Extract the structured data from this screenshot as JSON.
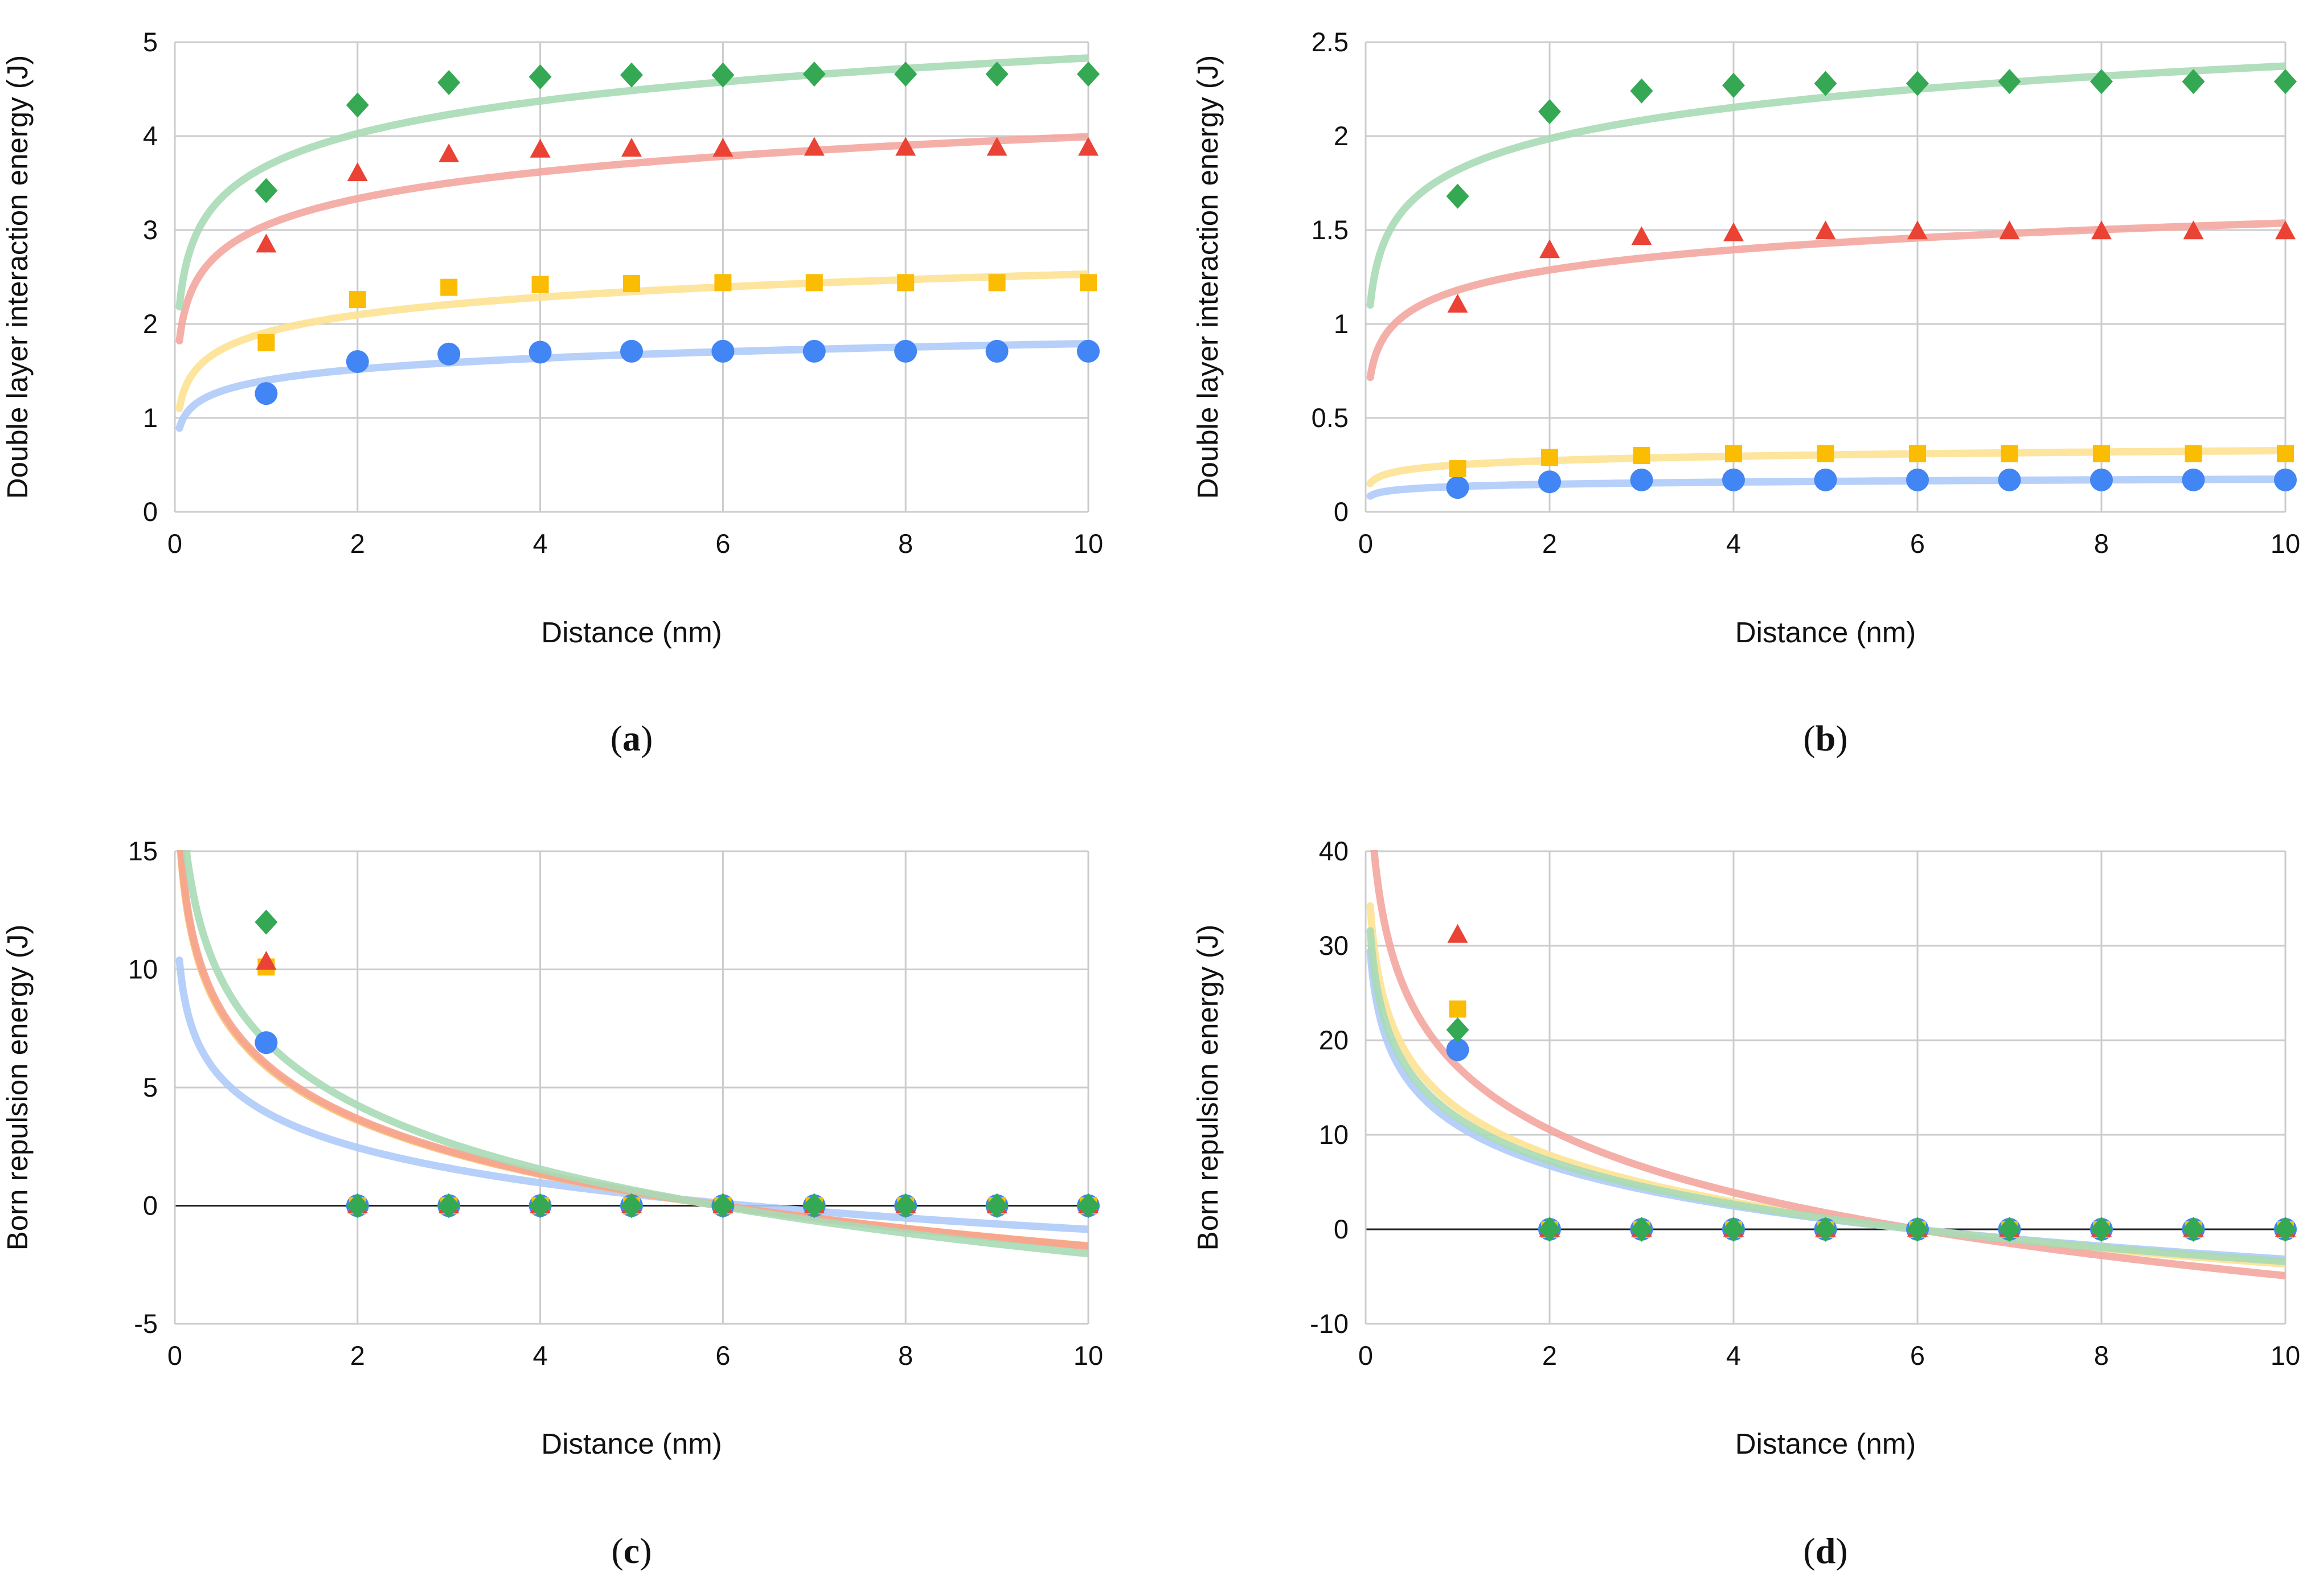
{
  "chart_data": [
    {
      "type": "scatter",
      "panel": "a",
      "caption_label": "a",
      "xlabel": "Distance (nm)",
      "ylabel": "Double layer interaction energy (J)",
      "xlim": [
        0,
        10
      ],
      "ylim": [
        0,
        5
      ],
      "xticks": [
        "0",
        "2",
        "4",
        "6",
        "8",
        "10"
      ],
      "yticks": [
        "0",
        "1",
        "2",
        "3",
        "4",
        "5"
      ],
      "grid": true,
      "legend": "none",
      "series": [
        {
          "name": "blue",
          "color": "#4285f4",
          "trend_color": "#aecbfa",
          "marker": "circle",
          "x": [
            1,
            2,
            3,
            4,
            5,
            6,
            7,
            8,
            9,
            10
          ],
          "y": [
            1.26,
            1.6,
            1.68,
            1.7,
            1.71,
            1.71,
            1.71,
            1.71,
            1.71,
            1.71
          ],
          "trend": {
            "a": 1.4,
            "b": 0.17
          }
        },
        {
          "name": "yellow",
          "color": "#fbbc04",
          "trend_color": "#fde293",
          "marker": "square",
          "x": [
            1,
            2,
            3,
            4,
            5,
            6,
            7,
            8,
            9,
            10
          ],
          "y": [
            1.8,
            2.26,
            2.39,
            2.42,
            2.43,
            2.44,
            2.44,
            2.44,
            2.44,
            2.44
          ],
          "trend": {
            "a": 1.91,
            "b": 0.27
          }
        },
        {
          "name": "red",
          "color": "#ea4335",
          "trend_color": "#f4a6a0",
          "marker": "triangle",
          "x": [
            1,
            2,
            3,
            4,
            5,
            6,
            7,
            8,
            9,
            10
          ],
          "y": [
            2.84,
            3.6,
            3.8,
            3.85,
            3.86,
            3.86,
            3.87,
            3.87,
            3.87,
            3.87
          ],
          "trend": {
            "a": 3.05,
            "b": 0.41
          }
        },
        {
          "name": "green",
          "color": "#34a853",
          "trend_color": "#a8dab5",
          "marker": "diamond",
          "x": [
            1,
            2,
            3,
            4,
            5,
            6,
            7,
            8,
            9,
            10
          ],
          "y": [
            3.42,
            4.33,
            4.57,
            4.63,
            4.65,
            4.65,
            4.66,
            4.66,
            4.66,
            4.66
          ],
          "trend": {
            "a": 3.68,
            "b": 0.5
          }
        }
      ]
    },
    {
      "type": "scatter",
      "panel": "b",
      "caption_label": "b",
      "xlabel": "Distance (nm)",
      "ylabel": "Double layer interaction energy (J)",
      "xlim": [
        0,
        10
      ],
      "ylim": [
        0,
        2.5
      ],
      "xticks": [
        "0",
        "2",
        "4",
        "6",
        "8",
        "10"
      ],
      "yticks": [
        "0",
        "0.5",
        "1",
        "1.5",
        "2",
        "2.5"
      ],
      "grid": true,
      "legend": "none",
      "series": [
        {
          "name": "blue",
          "color": "#4285f4",
          "trend_color": "#aecbfa",
          "marker": "circle",
          "x": [
            1,
            2,
            3,
            4,
            5,
            6,
            7,
            8,
            9,
            10
          ],
          "y": [
            0.13,
            0.16,
            0.17,
            0.17,
            0.17,
            0.17,
            0.17,
            0.17,
            0.17,
            0.17
          ],
          "trend": {
            "a": 0.135,
            "b": 0.017
          }
        },
        {
          "name": "yellow",
          "color": "#fbbc04",
          "trend_color": "#fde293",
          "marker": "square",
          "x": [
            1,
            2,
            3,
            4,
            5,
            6,
            7,
            8,
            9,
            10
          ],
          "y": [
            0.23,
            0.29,
            0.3,
            0.31,
            0.31,
            0.31,
            0.31,
            0.31,
            0.31,
            0.31
          ],
          "trend": {
            "a": 0.25,
            "b": 0.033
          }
        },
        {
          "name": "red",
          "color": "#ea4335",
          "trend_color": "#f4a6a0",
          "marker": "triangle",
          "x": [
            1,
            2,
            3,
            4,
            5,
            6,
            7,
            8,
            9,
            10
          ],
          "y": [
            1.1,
            1.39,
            1.46,
            1.48,
            1.49,
            1.49,
            1.49,
            1.49,
            1.49,
            1.49
          ],
          "trend": {
            "a": 1.18,
            "b": 0.155
          }
        },
        {
          "name": "green",
          "color": "#34a853",
          "trend_color": "#a8dab5",
          "marker": "diamond",
          "x": [
            1,
            2,
            3,
            4,
            5,
            6,
            7,
            8,
            9,
            10
          ],
          "y": [
            1.68,
            2.13,
            2.24,
            2.27,
            2.28,
            2.28,
            2.29,
            2.29,
            2.29,
            2.29
          ],
          "trend": {
            "a": 1.82,
            "b": 0.24
          }
        }
      ]
    },
    {
      "type": "scatter",
      "panel": "c",
      "caption_label": "c",
      "xlabel": "Distance (nm)",
      "ylabel": "Born repulsion energy (J)",
      "xlim": [
        0,
        10
      ],
      "ylim": [
        -5,
        15
      ],
      "xticks": [
        "0",
        "2",
        "4",
        "6",
        "8",
        "10"
      ],
      "yticks": [
        "-5",
        "0",
        "5",
        "10",
        "15"
      ],
      "grid": true,
      "legend": "none",
      "series": [
        {
          "name": "blue",
          "color": "#4285f4",
          "trend_color": "#aecbfa",
          "marker": "circle",
          "x": [
            1,
            2,
            3,
            4,
            5,
            6,
            7,
            8,
            9,
            10
          ],
          "y": [
            6.9,
            0,
            0,
            0,
            0,
            0,
            0,
            0,
            0,
            0
          ],
          "trend": {
            "a": 3.95,
            "b": -2.15
          }
        },
        {
          "name": "yellow",
          "color": "#fbbc04",
          "trend_color": "#fbc073",
          "marker": "square",
          "x": [
            1,
            2,
            3,
            4,
            5,
            6,
            7,
            8,
            9,
            10
          ],
          "y": [
            10.1,
            0,
            0,
            0,
            0,
            0,
            0,
            0,
            0,
            0
          ],
          "trend": {
            "a": 5.9,
            "b": -3.3
          }
        },
        {
          "name": "red",
          "color": "#ea4335",
          "trend_color": "#f6a38f",
          "marker": "triangle",
          "x": [
            1,
            2,
            3,
            4,
            5,
            6,
            7,
            8,
            9,
            10
          ],
          "y": [
            10.3,
            0,
            0,
            0,
            0,
            0,
            0,
            0,
            0,
            0
          ],
          "trend": {
            "a": 6.0,
            "b": -3.35
          }
        },
        {
          "name": "green",
          "color": "#34a853",
          "trend_color": "#a8dab5",
          "marker": "diamond",
          "x": [
            1,
            2,
            3,
            4,
            5,
            6,
            7,
            8,
            9,
            10
          ],
          "y": [
            12.0,
            0,
            0,
            0,
            0,
            0,
            0,
            0,
            0,
            0
          ],
          "trend": {
            "a": 6.95,
            "b": -3.9
          }
        }
      ]
    },
    {
      "type": "scatter",
      "panel": "d",
      "caption_label": "d",
      "xlabel": "Distance (nm)",
      "ylabel": "Born repulsion energy (J)",
      "xlim": [
        0,
        10
      ],
      "ylim": [
        -10,
        40
      ],
      "xticks": [
        "0",
        "2",
        "4",
        "6",
        "8",
        "10"
      ],
      "yticks": [
        "-10",
        "0",
        "10",
        "20",
        "30",
        "40"
      ],
      "grid": true,
      "legend": "none",
      "series": [
        {
          "name": "blue",
          "color": "#4285f4",
          "trend_color": "#aecbfa",
          "marker": "circle",
          "x": [
            1,
            2,
            3,
            4,
            5,
            6,
            7,
            8,
            9,
            10
          ],
          "y": [
            19.0,
            0,
            0,
            0,
            0,
            0,
            0,
            0,
            0,
            0
          ],
          "trend": {
            "a": 11.0,
            "b": -6.15
          }
        },
        {
          "name": "yellow",
          "color": "#fbbc04",
          "trend_color": "#fde293",
          "marker": "square",
          "x": [
            1,
            2,
            3,
            4,
            5,
            6,
            7,
            8,
            9,
            10
          ],
          "y": [
            23.3,
            0,
            0,
            0,
            0,
            0,
            0,
            0,
            0,
            0
          ],
          "trend": {
            "a": 12.8,
            "b": -7.15
          }
        },
        {
          "name": "red",
          "color": "#ea4335",
          "trend_color": "#f4a6a0",
          "marker": "triangle",
          "x": [
            1,
            2,
            3,
            4,
            5,
            6,
            7,
            8,
            9,
            10
          ],
          "y": [
            31.1,
            0,
            0,
            0,
            0,
            0,
            0,
            0,
            0,
            0
          ],
          "trend": {
            "a": 17.2,
            "b": -9.6
          }
        },
        {
          "name": "green",
          "color": "#34a853",
          "trend_color": "#a8dab5",
          "marker": "diamond",
          "x": [
            1,
            2,
            3,
            4,
            5,
            6,
            7,
            8,
            9,
            10
          ],
          "y": [
            21.1,
            0,
            0,
            0,
            0,
            0,
            0,
            0,
            0,
            0
          ],
          "trend": {
            "a": 11.8,
            "b": -6.6
          }
        }
      ]
    }
  ]
}
